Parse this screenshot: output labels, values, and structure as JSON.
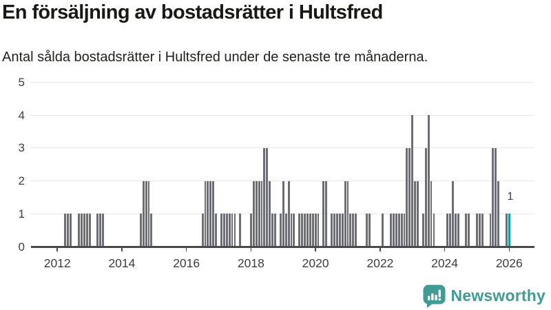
{
  "header": {
    "title": "En försäljning av bostadsrätter i Hultsfred",
    "subtitle": "Antal sålda bostadsrätter i Hultsfred under de senaste tre månaderna."
  },
  "chart_data": {
    "type": "bar",
    "title": "En försäljning av bostadsrätter i Hultsfred",
    "subtitle": "Antal sålda bostadsrätter i Hultsfred under de senaste tre månaderna.",
    "frequency": "monthly",
    "start_month": "2012-01",
    "end_month": "2026-01",
    "x_tick_labels": [
      "2012",
      "2014",
      "2016",
      "2018",
      "2020",
      "2022",
      "2024",
      "2026"
    ],
    "y_ticks": [
      "0",
      "1",
      "2",
      "3",
      "4",
      "5"
    ],
    "ylim": [
      0,
      5
    ],
    "grid": true,
    "legend": "none",
    "bar_color": "#6d6d75",
    "series": [
      {
        "name": "Antal sålda bostadsrätter",
        "values": [
          0,
          0,
          0,
          1,
          1,
          1,
          0,
          0,
          1,
          1,
          1,
          1,
          1,
          0,
          0,
          1,
          1,
          1,
          0,
          0,
          0,
          0,
          0,
          0,
          0,
          0,
          0,
          0,
          0,
          0,
          0,
          1,
          2,
          2,
          2,
          1,
          0,
          0,
          0,
          0,
          0,
          0,
          0,
          0,
          0,
          0,
          0,
          0,
          0,
          0,
          0,
          0,
          0,
          0,
          1,
          2,
          2,
          2,
          2,
          1,
          0,
          1,
          1,
          1,
          1,
          1,
          1,
          0,
          1,
          0,
          0,
          0,
          1,
          2,
          2,
          2,
          2,
          3,
          3,
          2,
          1,
          1,
          0,
          1,
          2,
          1,
          2,
          1,
          1,
          0,
          1,
          1,
          1,
          1,
          1,
          1,
          1,
          1,
          0,
          2,
          2,
          0,
          1,
          1,
          1,
          1,
          1,
          2,
          2,
          1,
          1,
          1,
          0,
          0,
          0,
          1,
          1,
          0,
          0,
          0,
          0,
          1,
          0,
          0,
          1,
          1,
          1,
          1,
          1,
          1,
          3,
          3,
          4,
          2,
          2,
          0,
          1,
          3,
          4,
          2,
          1,
          0,
          0,
          0,
          0,
          1,
          1,
          2,
          1,
          1,
          0,
          0,
          1,
          1,
          0,
          0,
          1,
          1,
          1,
          0,
          0,
          1,
          3,
          3,
          2,
          0,
          0,
          1,
          1
        ]
      }
    ],
    "highlight": {
      "month": "2026-01",
      "value": 1,
      "label": "1",
      "color": "#0c9ea1"
    }
  },
  "footer": {
    "brand": "Newsworthy",
    "logo_icon": "newsworthy-speech-bubble-bar-chart-icon",
    "brand_color": "#3f9b94"
  }
}
